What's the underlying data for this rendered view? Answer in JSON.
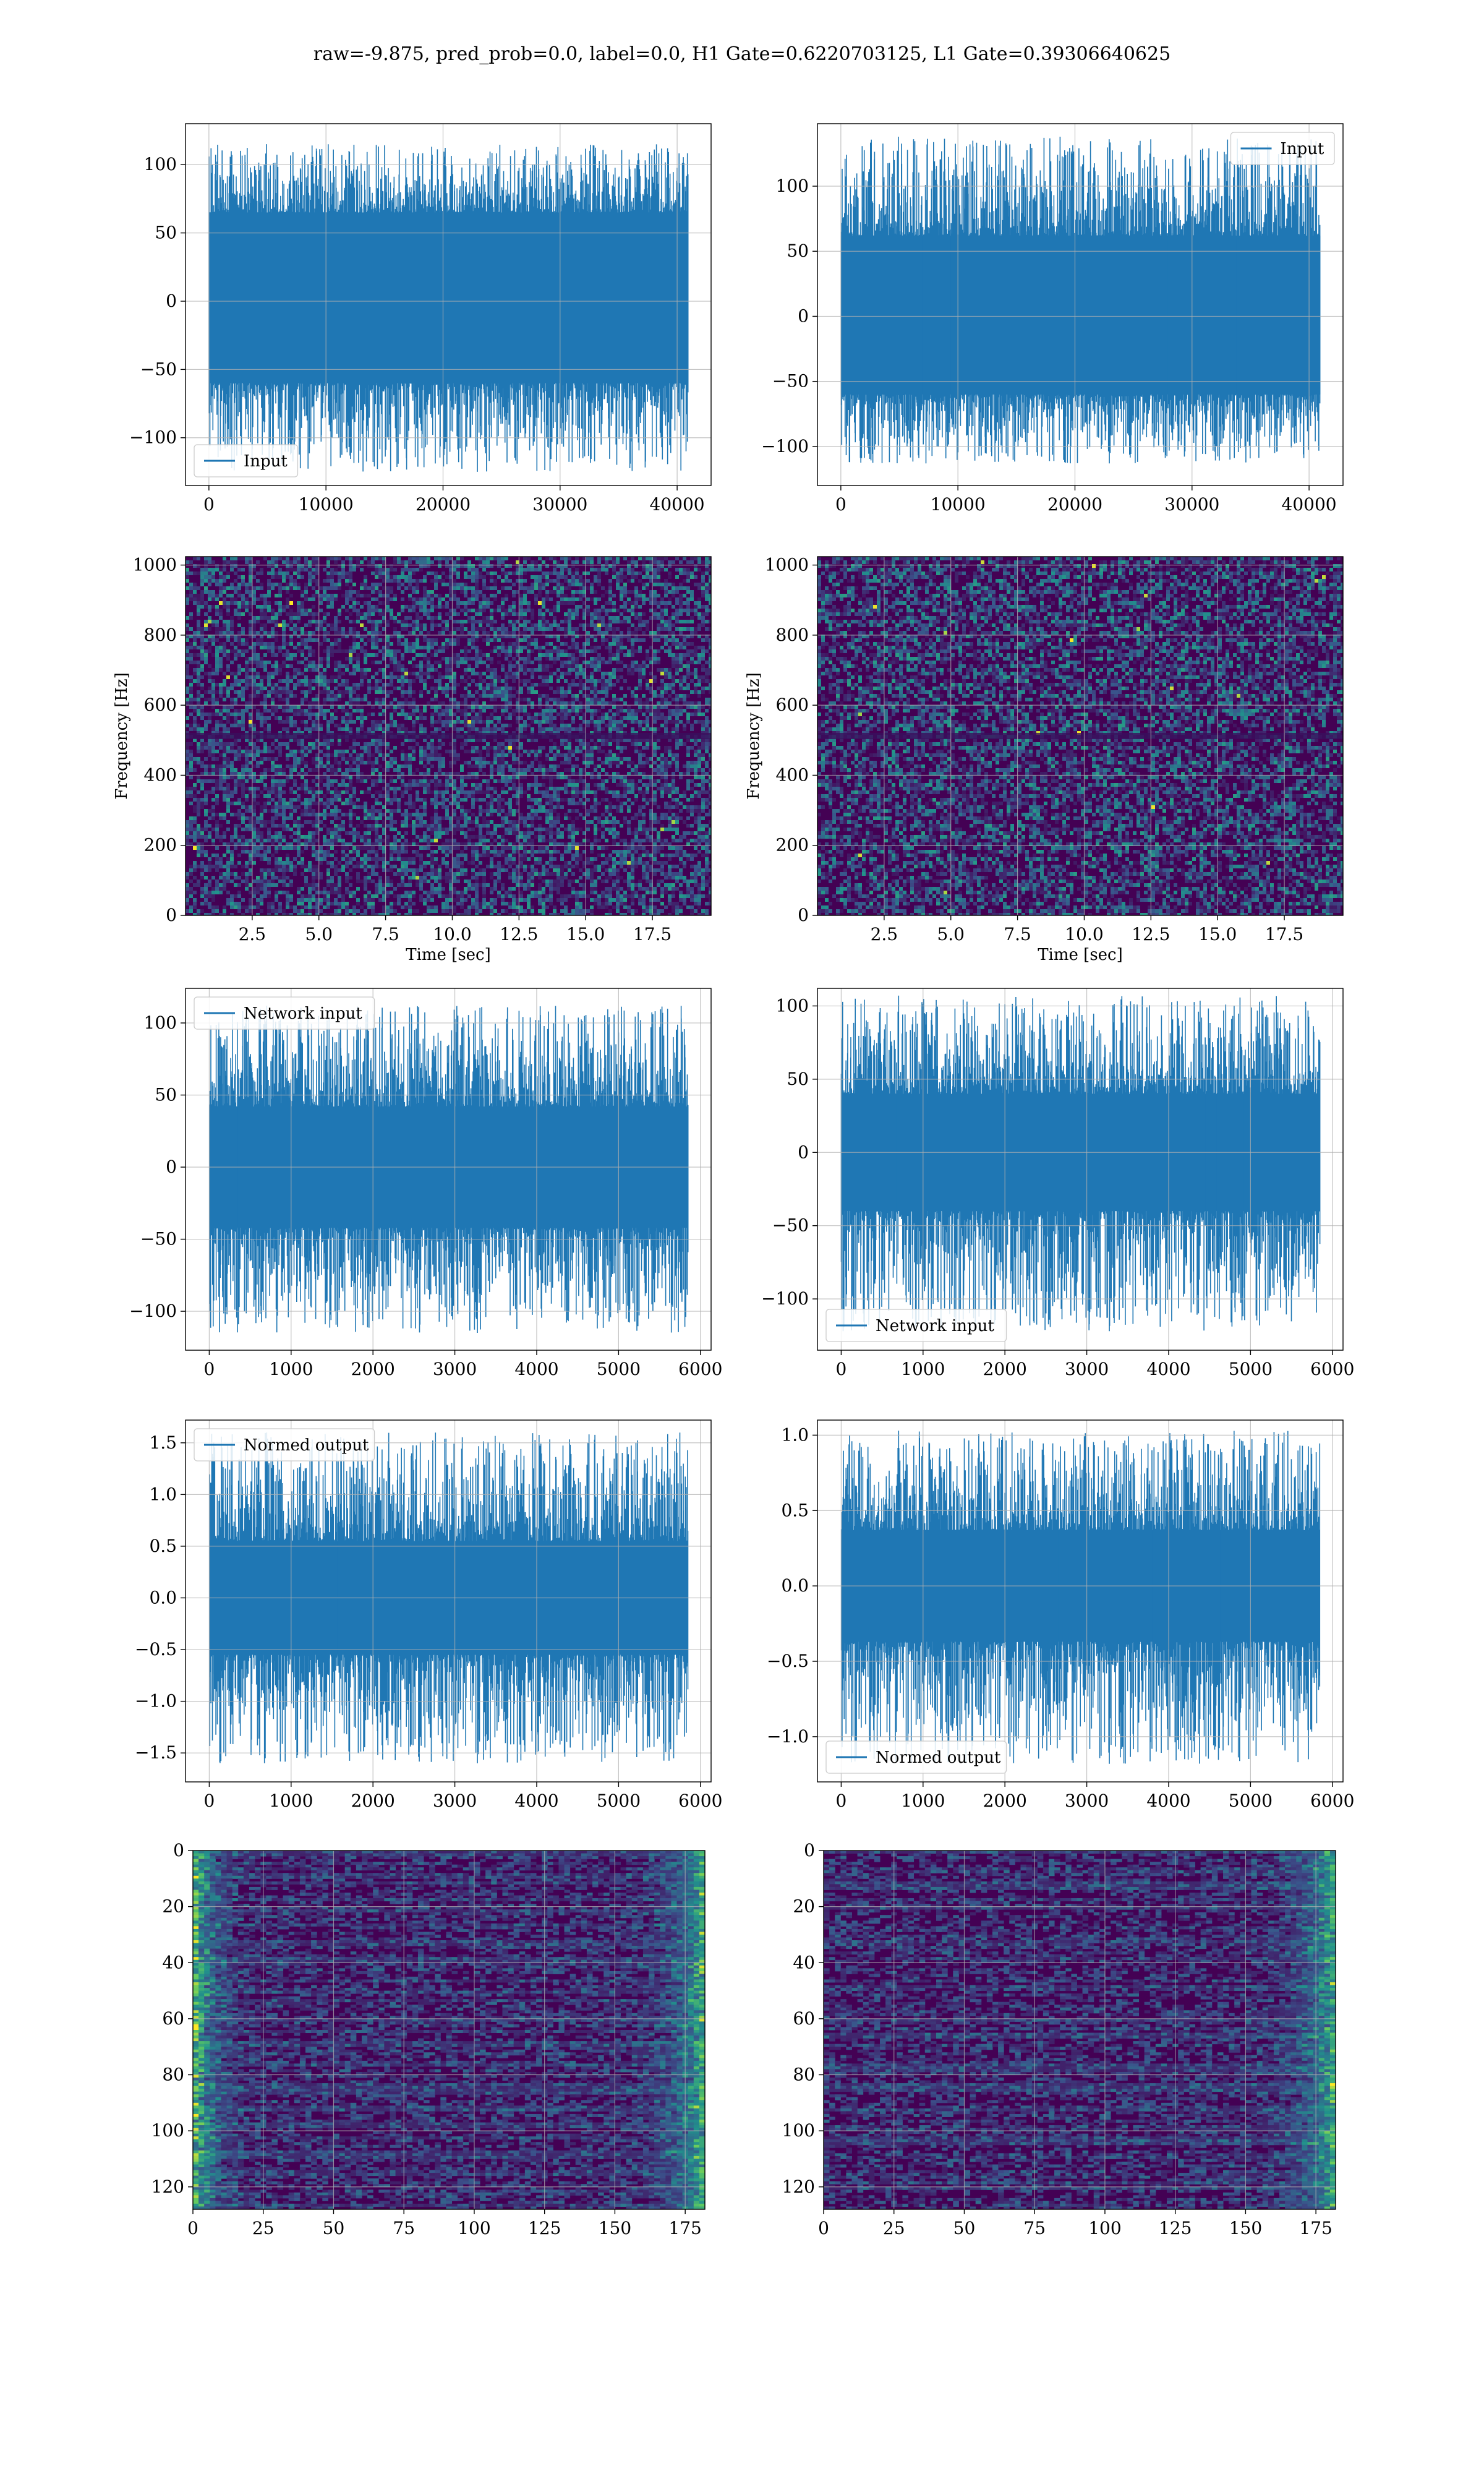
{
  "figure": {
    "suptitle": "raw=-9.875, pred_prob=0.0, label=0.0, H1 Gate=0.6220703125, L1 Gate=0.39306640625"
  },
  "colors": {
    "series": "#1f77b4",
    "grid": "#b0b0b0",
    "heatmap_bg": "#440154"
  },
  "chart_data": [
    {
      "id": "h1-input",
      "type": "line",
      "series": [
        {
          "name": "Input",
          "band": [
            -60,
            65
          ],
          "peaks": [
            -125,
            115
          ]
        }
      ],
      "xlim": [
        -2000,
        42900
      ],
      "ylim": [
        -135,
        130
      ],
      "xticks": [
        0,
        10000,
        20000,
        30000,
        40000
      ],
      "xtick_labels": [
        "0",
        "10000",
        "20000",
        "30000",
        "40000"
      ],
      "yticks": [
        -100,
        -50,
        0,
        50,
        100
      ],
      "ytick_labels": [
        "−100",
        "−50",
        "0",
        "50",
        "100"
      ],
      "x_range": [
        0,
        40960
      ],
      "legend": "lower-left",
      "grid": true
    },
    {
      "id": "l1-input",
      "type": "line",
      "series": [
        {
          "name": "Input",
          "band": [
            -60,
            62
          ],
          "peaks": [
            -113,
            138
          ]
        }
      ],
      "xlim": [
        -2000,
        42900
      ],
      "ylim": [
        -130,
        148
      ],
      "xticks": [
        0,
        10000,
        20000,
        30000,
        40000
      ],
      "xtick_labels": [
        "0",
        "10000",
        "20000",
        "30000",
        "40000"
      ],
      "yticks": [
        -100,
        -50,
        0,
        50,
        100
      ],
      "ytick_labels": [
        "−100",
        "−50",
        "0",
        "50",
        "100"
      ],
      "x_range": [
        0,
        40960
      ],
      "legend": "upper-right",
      "grid": true
    },
    {
      "id": "h1-spectrogram",
      "type": "heatmap",
      "xlim": [
        0,
        19.7
      ],
      "ylim": [
        0,
        1024
      ],
      "xticks": [
        2.5,
        5,
        7.5,
        10,
        12.5,
        15,
        17.5
      ],
      "xtick_labels": [
        "2.5",
        "5.0",
        "7.5",
        "10.0",
        "12.5",
        "15.0",
        "17.5"
      ],
      "yticks": [
        0,
        200,
        400,
        600,
        800,
        1000
      ],
      "ytick_labels": [
        "0",
        "200",
        "400",
        "600",
        "800",
        "1000"
      ],
      "xlabel": "Time [sec]",
      "ylabel": "Frequency [Hz]",
      "grid": true
    },
    {
      "id": "l1-spectrogram",
      "type": "heatmap",
      "xlim": [
        0,
        19.7
      ],
      "ylim": [
        0,
        1024
      ],
      "xticks": [
        2.5,
        5,
        7.5,
        10,
        12.5,
        15,
        17.5
      ],
      "xtick_labels": [
        "2.5",
        "5.0",
        "7.5",
        "10.0",
        "12.5",
        "15.0",
        "17.5"
      ],
      "yticks": [
        0,
        200,
        400,
        600,
        800,
        1000
      ],
      "ytick_labels": [
        "0",
        "200",
        "400",
        "600",
        "800",
        "1000"
      ],
      "xlabel": "Time [sec]",
      "ylabel": "Frequency [Hz]",
      "grid": true
    },
    {
      "id": "h1-network-input",
      "type": "line",
      "series": [
        {
          "name": "Network input",
          "band": [
            -42,
            42
          ],
          "peaks": [
            -115,
            112
          ]
        }
      ],
      "xlim": [
        -290,
        6130
      ],
      "ylim": [
        -127,
        124
      ],
      "xticks": [
        0,
        1000,
        2000,
        3000,
        4000,
        5000,
        6000
      ],
      "xtick_labels": [
        "0",
        "1000",
        "2000",
        "3000",
        "4000",
        "5000",
        "6000"
      ],
      "yticks": [
        -100,
        -50,
        0,
        50,
        100
      ],
      "ytick_labels": [
        "−100",
        "−50",
        "0",
        "50",
        "100"
      ],
      "x_range": [
        0,
        5850
      ],
      "legend": "upper-left",
      "grid": true
    },
    {
      "id": "l1-network-input",
      "type": "line",
      "series": [
        {
          "name": "Network input",
          "band": [
            -40,
            40
          ],
          "peaks": [
            -122,
            107
          ]
        }
      ],
      "xlim": [
        -290,
        6130
      ],
      "ylim": [
        -135,
        112
      ],
      "xticks": [
        0,
        1000,
        2000,
        3000,
        4000,
        5000,
        6000
      ],
      "xtick_labels": [
        "0",
        "1000",
        "2000",
        "3000",
        "4000",
        "5000",
        "6000"
      ],
      "yticks": [
        -100,
        -50,
        0,
        50,
        100
      ],
      "ytick_labels": [
        "−100",
        "−50",
        "0",
        "50",
        "100"
      ],
      "x_range": [
        0,
        5850
      ],
      "legend": "lower-left",
      "grid": true
    },
    {
      "id": "h1-normed-output",
      "type": "line",
      "series": [
        {
          "name": "Normed output",
          "band": [
            -0.55,
            0.55
          ],
          "peaks": [
            -1.6,
            1.6
          ]
        }
      ],
      "xlim": [
        -290,
        6130
      ],
      "ylim": [
        -1.78,
        1.72
      ],
      "xticks": [
        0,
        1000,
        2000,
        3000,
        4000,
        5000,
        6000
      ],
      "xtick_labels": [
        "0",
        "1000",
        "2000",
        "3000",
        "4000",
        "5000",
        "6000"
      ],
      "yticks": [
        -1.5,
        -1.0,
        -0.5,
        0.0,
        0.5,
        1.0,
        1.5
      ],
      "ytick_labels": [
        "−1.5",
        "−1.0",
        "−0.5",
        "0.0",
        "0.5",
        "1.0",
        "1.5"
      ],
      "x_range": [
        0,
        5850
      ],
      "legend": "upper-left",
      "grid": true
    },
    {
      "id": "l1-normed-output",
      "type": "line",
      "series": [
        {
          "name": "Normed output",
          "band": [
            -0.37,
            0.37
          ],
          "peaks": [
            -1.18,
            1.03
          ]
        }
      ],
      "xlim": [
        -290,
        6130
      ],
      "ylim": [
        -1.3,
        1.1
      ],
      "xticks": [
        0,
        1000,
        2000,
        3000,
        4000,
        5000,
        6000
      ],
      "xtick_labels": [
        "0",
        "1000",
        "2000",
        "3000",
        "4000",
        "5000",
        "6000"
      ],
      "yticks": [
        -1.0,
        -0.5,
        0.0,
        0.5,
        1.0
      ],
      "ytick_labels": [
        "−1.0",
        "−0.5",
        "0.0",
        "0.5",
        "1.0"
      ],
      "x_range": [
        0,
        5850
      ],
      "legend": "lower-left",
      "grid": true
    },
    {
      "id": "h1-feature-map",
      "type": "heatmap",
      "xlim": [
        0,
        182
      ],
      "ylim": [
        128,
        0
      ],
      "xticks": [
        0,
        25,
        50,
        75,
        100,
        125,
        150,
        175
      ],
      "xtick_labels": [
        "0",
        "25",
        "50",
        "75",
        "100",
        "125",
        "150",
        "175"
      ],
      "yticks": [
        0,
        20,
        40,
        60,
        80,
        100,
        120
      ],
      "ytick_labels": [
        "0",
        "20",
        "40",
        "60",
        "80",
        "100",
        "120"
      ],
      "bright_edges": "left-and-right",
      "grid": true
    },
    {
      "id": "l1-feature-map",
      "type": "heatmap",
      "xlim": [
        0,
        182
      ],
      "ylim": [
        128,
        0
      ],
      "xticks": [
        0,
        25,
        50,
        75,
        100,
        125,
        150,
        175
      ],
      "xtick_labels": [
        "0",
        "25",
        "50",
        "75",
        "100",
        "125",
        "150",
        "175"
      ],
      "yticks": [
        0,
        20,
        40,
        60,
        80,
        100,
        120
      ],
      "ytick_labels": [
        "0",
        "20",
        "40",
        "60",
        "80",
        "100",
        "120"
      ],
      "bright_edges": "right",
      "grid": true
    }
  ]
}
